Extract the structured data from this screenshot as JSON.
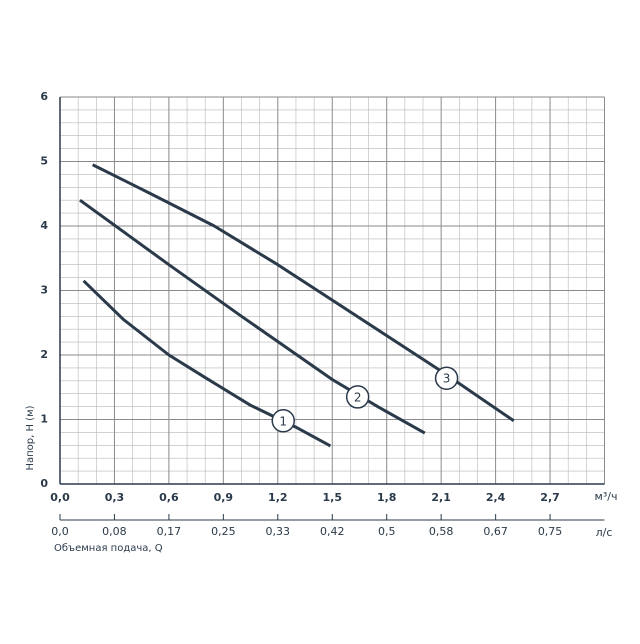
{
  "chart_data": {
    "type": "line",
    "x_label": "м³/ч",
    "y_label": "Напор, H (м)",
    "x2_unit": "л/с",
    "x2_label": "Объемная подача, Q",
    "xlim": [
      0,
      3.0
    ],
    "ylim": [
      0,
      6
    ],
    "xticks": [
      {
        "value": 0,
        "label": "0,0"
      },
      {
        "value": 0.3,
        "label": "0,3"
      },
      {
        "value": 0.6,
        "label": "0,6"
      },
      {
        "value": 0.9,
        "label": "0,9"
      },
      {
        "value": 1.2,
        "label": "1,2"
      },
      {
        "value": 1.5,
        "label": "1,5"
      },
      {
        "value": 1.8,
        "label": "1,8"
      },
      {
        "value": 2.1,
        "label": "2,1"
      },
      {
        "value": 2.4,
        "label": "2,4"
      },
      {
        "value": 2.7,
        "label": "2,7"
      }
    ],
    "yticks": [
      0,
      1,
      2,
      3,
      4,
      5,
      6
    ],
    "x2lim": [
      0,
      0.8333
    ],
    "x2ticks": [
      {
        "value": 0,
        "label": "0,0"
      },
      {
        "value": 0.0833,
        "label": "0,08"
      },
      {
        "value": 0.1667,
        "label": "0,17"
      },
      {
        "value": 0.25,
        "label": "0,25"
      },
      {
        "value": 0.3333,
        "label": "0,33"
      },
      {
        "value": 0.4167,
        "label": "0,42"
      },
      {
        "value": 0.5,
        "label": "0,5"
      },
      {
        "value": 0.5833,
        "label": "0,58"
      },
      {
        "value": 0.6667,
        "label": "0,67"
      },
      {
        "value": 0.75,
        "label": "0,75"
      }
    ],
    "grid": true,
    "series": [
      {
        "name": "1",
        "color": "#2b3a4a",
        "x": [
          0.13,
          0.35,
          0.6,
          0.8,
          1.05,
          1.3,
          1.49
        ],
        "values": [
          3.15,
          2.55,
          2.0,
          1.65,
          1.22,
          0.88,
          0.59
        ]
      },
      {
        "name": "2",
        "color": "#2b3a4a",
        "x": [
          0.11,
          0.6,
          1.0,
          1.5,
          1.75,
          2.01
        ],
        "values": [
          4.4,
          3.4,
          2.6,
          1.62,
          1.2,
          0.79
        ]
      },
      {
        "name": "3",
        "color": "#2b3a4a",
        "x": [
          0.18,
          0.5,
          0.85,
          1.2,
          1.5,
          1.8,
          2.1,
          2.5
        ],
        "values": [
          4.95,
          4.5,
          4.0,
          3.4,
          2.85,
          2.3,
          1.75,
          0.98
        ]
      }
    ]
  }
}
